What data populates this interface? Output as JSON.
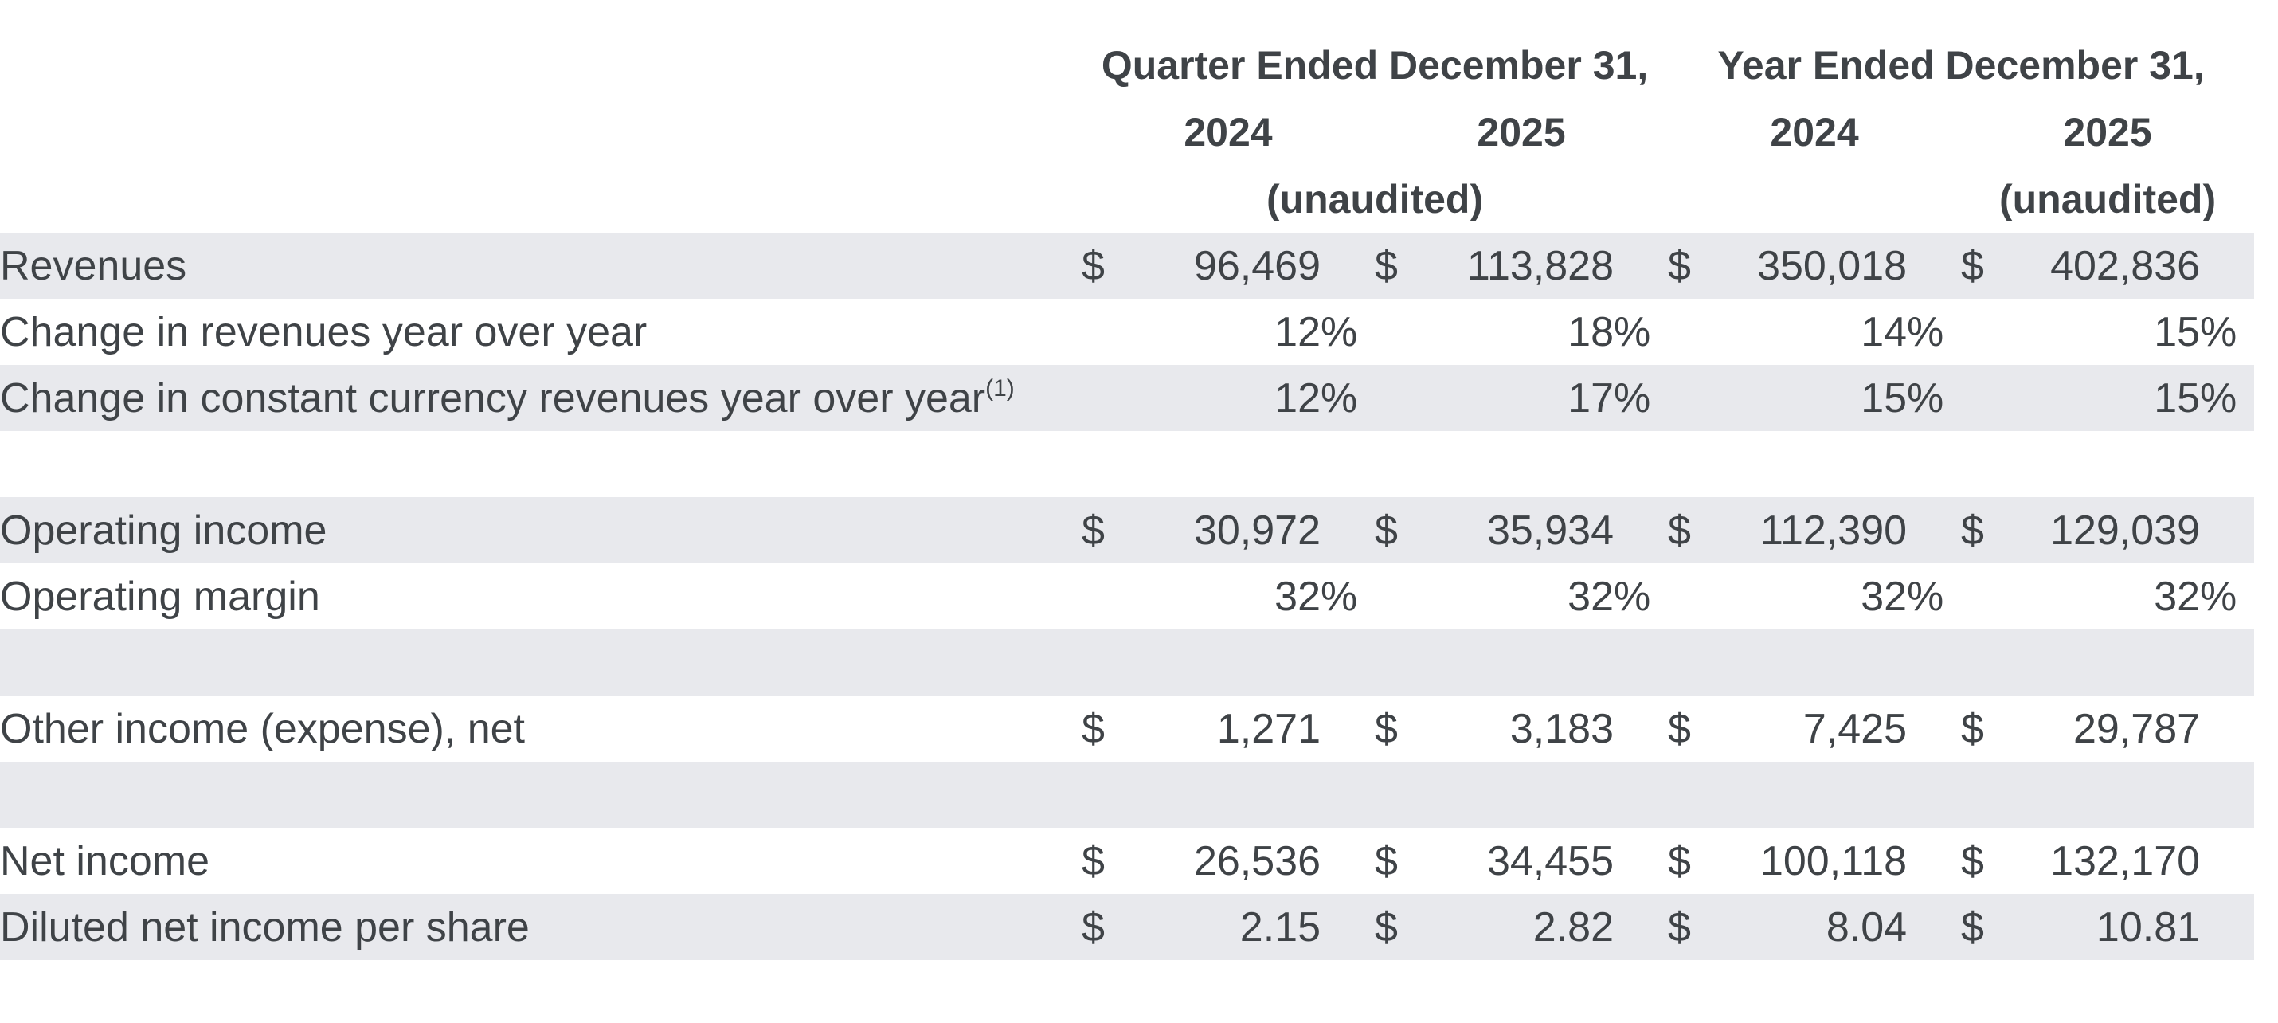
{
  "header": {
    "col_groups": [
      {
        "label": "Quarter Ended December 31,"
      },
      {
        "label": "Year Ended December 31,"
      }
    ],
    "years": [
      "2024",
      "2025",
      "2024",
      "2025"
    ],
    "unaudited_quarter": "(unaudited)",
    "unaudited_year": "(unaudited)"
  },
  "table": {
    "currency_symbol": "$",
    "percent_symbol": "%",
    "rows": [
      {
        "type": "currency",
        "shaded": true,
        "label": "Revenues",
        "values": [
          "96,469",
          "113,828",
          "350,018",
          "402,836"
        ]
      },
      {
        "type": "percent",
        "shaded": false,
        "label": "Change in revenues year over year",
        "values": [
          "12",
          "18",
          "14",
          "15"
        ]
      },
      {
        "type": "percent",
        "shaded": true,
        "label": "Change in constant currency revenues year over year",
        "footnote": "(1)",
        "values": [
          "12",
          "17",
          "15",
          "15"
        ]
      },
      {
        "type": "blank",
        "shaded": false
      },
      {
        "type": "currency",
        "shaded": true,
        "label": "Operating income",
        "values": [
          "30,972",
          "35,934",
          "112,390",
          "129,039"
        ]
      },
      {
        "type": "percent",
        "shaded": false,
        "label": "Operating margin",
        "values": [
          "32",
          "32",
          "32",
          "32"
        ]
      },
      {
        "type": "blank",
        "shaded": true
      },
      {
        "type": "currency",
        "shaded": false,
        "label": "Other income (expense), net",
        "values": [
          "1,271",
          "3,183",
          "7,425",
          "29,787"
        ]
      },
      {
        "type": "blank",
        "shaded": true
      },
      {
        "type": "currency",
        "shaded": false,
        "label": "Net income",
        "values": [
          "26,536",
          "34,455",
          "100,118",
          "132,170"
        ]
      },
      {
        "type": "currency",
        "shaded": true,
        "label": "Diluted net income per share",
        "values": [
          "2.15",
          "2.82",
          "8.04",
          "10.81"
        ]
      }
    ]
  },
  "colors": {
    "row_shade": "#e8e9ed",
    "text": "#3f4347",
    "background": "#ffffff"
  }
}
